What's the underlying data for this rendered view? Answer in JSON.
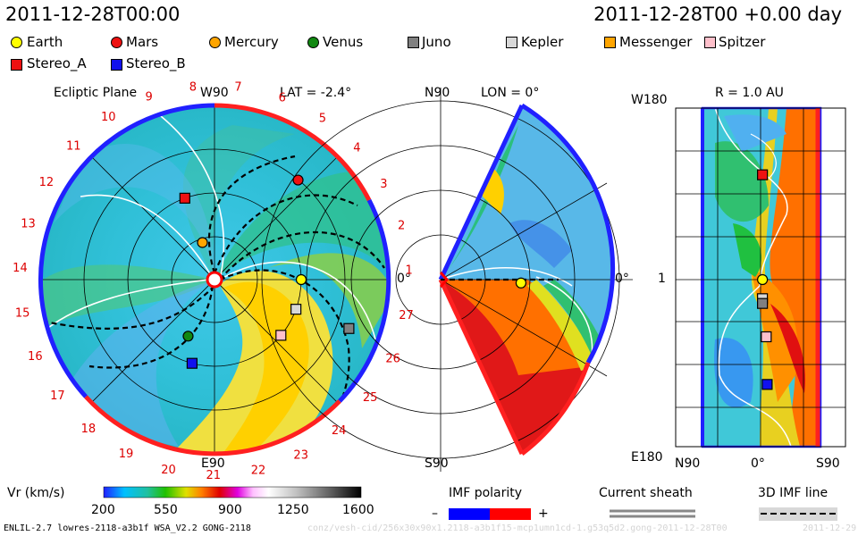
{
  "header": {
    "left_title": "2011-12-28T00:00",
    "right_title": "2011-12-28T00 +0.00 day"
  },
  "legend": [
    {
      "name": "Earth",
      "color": "#ffff00",
      "shape": "circle"
    },
    {
      "name": "Mars",
      "color": "#ee1111",
      "shape": "circle"
    },
    {
      "name": "Mercury",
      "color": "#ffa500",
      "shape": "circle"
    },
    {
      "name": "Venus",
      "color": "#118811",
      "shape": "circle"
    },
    {
      "name": "Juno",
      "color": "#808080",
      "shape": "square"
    },
    {
      "name": "Kepler",
      "color": "#d8d8d8",
      "shape": "square"
    },
    {
      "name": "Messenger",
      "color": "#ffa500",
      "shape": "square"
    },
    {
      "name": "Spitzer",
      "color": "#ffc0cb",
      "shape": "square"
    },
    {
      "name": "Stereo_A",
      "color": "#ee1111",
      "shape": "square"
    },
    {
      "name": "Stereo_B",
      "color": "#1111ee",
      "shape": "square"
    }
  ],
  "panels": {
    "ecliptic": {
      "title": "Ecliptic Plane",
      "w90": "W90",
      "lat": "LAT = -2.4°",
      "e90": "E90",
      "zero": "0°",
      "sectors": [
        "1",
        "2",
        "3",
        "4",
        "5",
        "6",
        "7",
        "8",
        "9",
        "10",
        "11",
        "12",
        "13",
        "14",
        "15",
        "16",
        "17",
        "18",
        "19",
        "20",
        "21",
        "22",
        "23",
        "24",
        "25",
        "26",
        "27"
      ]
    },
    "meridional": {
      "n90": "N90",
      "lon": "LON = 0°",
      "s90": "S90",
      "zero": "0°"
    },
    "radial": {
      "title": "R = 1.0 AU",
      "w180": "W180",
      "e180": "E180",
      "one": "1",
      "n90": "N90",
      "zero": "0°",
      "s90": "S90"
    }
  },
  "colorbar": {
    "label": "Vr (km/s)",
    "ticks": [
      "200",
      "550",
      "900",
      "1250",
      "1600"
    ],
    "stops": [
      "#2020ff",
      "#00c0ff",
      "#20c0a0",
      "#20c000",
      "#e0e000",
      "#ff8000",
      "#e00000",
      "#e000e0",
      "#ffc0ff",
      "#ffffff",
      "#c0c0c0",
      "#808080",
      "#303030",
      "#000000"
    ]
  },
  "imf": {
    "label": "IMF polarity",
    "minus": "–",
    "plus": "+",
    "neg_color": "#0000ff",
    "pos_color": "#ff0000"
  },
  "sheath": {
    "label": "Current sheath"
  },
  "imf3d": {
    "label": "3D IMF line"
  },
  "footer": {
    "left": "ENLIL-2.7 lowres-2118-a3b1f WSA_V2.2 GONG-2118",
    "right": "conz/vesh-cid/256x30x90x1.2118-a3b1f15-mcp1umn1cd-1.g53q5d2.gong-2011-12-28T00",
    "date": "2011-12-29"
  },
  "chart_data": [
    {
      "type": "polar-map",
      "name_shown": "Ecliptic Plane",
      "quantity": "Vr (km/s)",
      "vmin": 200,
      "vmax": 1600,
      "latitude_label": "LAT = -2.4°",
      "bodies": [
        {
          "name": "Earth",
          "lon_deg": 0,
          "r_au": 1.0
        },
        {
          "name": "Mars",
          "lon_deg": 50,
          "r_au": 1.5
        },
        {
          "name": "Mercury",
          "lon_deg": 108,
          "r_au": 0.45
        },
        {
          "name": "Venus",
          "lon_deg": -115,
          "r_au": 0.72
        },
        {
          "name": "Stereo_A",
          "lon_deg": 110,
          "r_au": 1.0
        },
        {
          "name": "Stereo_B",
          "lon_deg": -105,
          "r_au": 1.0
        },
        {
          "name": "Spitzer",
          "lon_deg": -40,
          "r_au": 1.0
        },
        {
          "name": "Kepler",
          "lon_deg": -20,
          "r_au": 1.0
        },
        {
          "name": "Juno",
          "lon_deg": -20,
          "r_au": 1.65
        }
      ]
    },
    {
      "type": "polar-map",
      "name_shown": "LON = 0°",
      "quantity": "Vr (km/s)",
      "latitude_range": [
        -60,
        60
      ],
      "bodies": [
        {
          "name": "Earth",
          "lat_deg": -2.4,
          "r_au": 1.0
        }
      ]
    },
    {
      "type": "heatmap",
      "name_shown": "R = 1.0 AU",
      "quantity": "Vr (km/s)",
      "x_ticks": [
        "N90",
        "0°",
        "S90"
      ],
      "y_ticks": [
        "W180",
        "1",
        "E180"
      ],
      "bodies": [
        {
          "name": "Stereo_A",
          "lat_deg": -2,
          "lon_deg": 110
        },
        {
          "name": "Earth",
          "lat_deg": -2,
          "lon_deg": 0
        },
        {
          "name": "Kepler",
          "lat_deg": -2,
          "lon_deg": -20
        },
        {
          "name": "Juno",
          "lat_deg": -2,
          "lon_deg": -25
        },
        {
          "name": "Spitzer",
          "lat_deg": -6,
          "lon_deg": -60
        },
        {
          "name": "Stereo_B",
          "lat_deg": -7,
          "lon_deg": -110
        }
      ]
    }
  ]
}
